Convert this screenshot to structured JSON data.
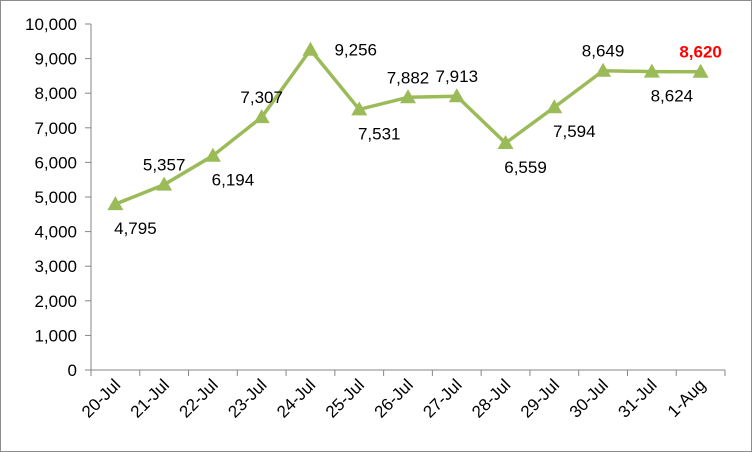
{
  "chart_data": {
    "type": "line",
    "title": "",
    "xlabel": "",
    "ylabel": "",
    "categories": [
      "20-Jul",
      "21-Jul",
      "22-Jul",
      "23-Jul",
      "24-Jul",
      "25-Jul",
      "26-Jul",
      "27-Jul",
      "28-Jul",
      "29-Jul",
      "30-Jul",
      "31-Jul",
      "1-Aug"
    ],
    "series": [
      {
        "values": [
          4795,
          5357,
          6194,
          7307,
          9256,
          7531,
          7882,
          7913,
          6559,
          7594,
          8649,
          8624,
          8620
        ],
        "labels": [
          "4,795",
          "5,357",
          "6,194",
          "7,307",
          "9,256",
          "7,531",
          "7,882",
          "7,913",
          "6,559",
          "7,594",
          "8,649",
          "8,624",
          "8,620"
        ],
        "color": "#9bbb59",
        "marker": "triangle",
        "highlight_index": 12,
        "highlight_color": "#ff0000"
      }
    ],
    "ylim": [
      0,
      10000
    ],
    "yticks": [
      0,
      1000,
      2000,
      3000,
      4000,
      5000,
      6000,
      7000,
      8000,
      9000,
      10000
    ],
    "ytick_labels": [
      "0",
      "1,000",
      "2,000",
      "3,000",
      "4,000",
      "5,000",
      "6,000",
      "7,000",
      "8,000",
      "9,000",
      "10,000"
    ],
    "grid": false,
    "legend": "none"
  }
}
